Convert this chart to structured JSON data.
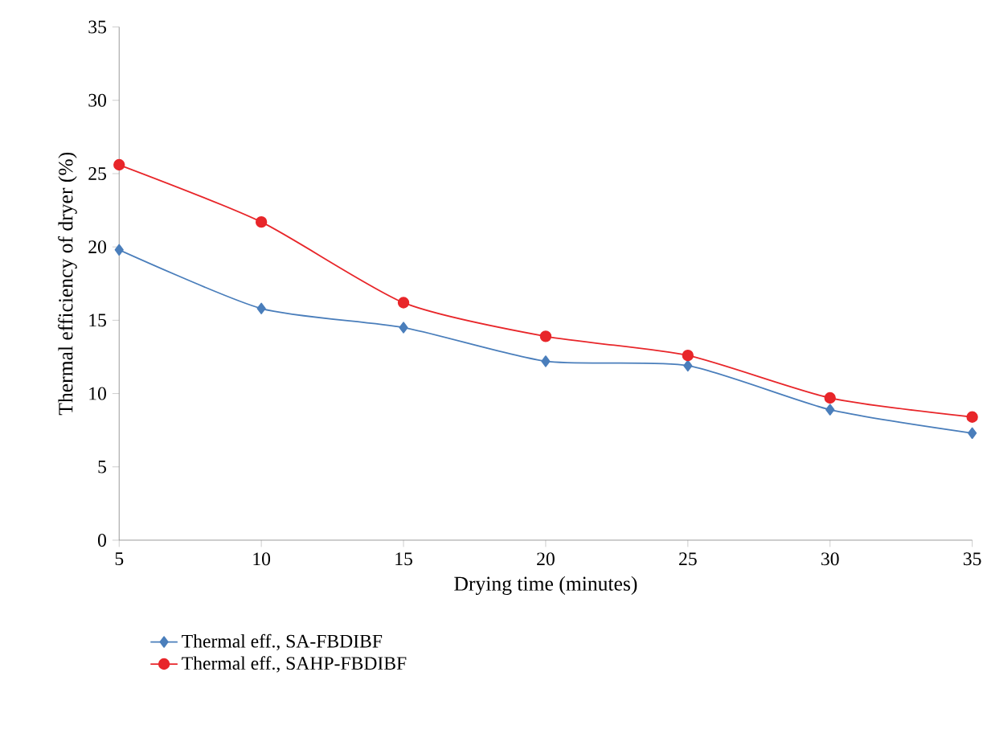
{
  "chart_data": {
    "type": "line",
    "xlabel": "Drying time (minutes)",
    "ylabel": "Thermal efficiency of dryer (%)",
    "x": [
      5,
      10,
      15,
      20,
      25,
      30,
      35
    ],
    "series": [
      {
        "name": "Thermal eff., SA-FBDIBF",
        "color": "#4a7ebb",
        "marker": "diamond",
        "values": [
          19.8,
          15.8,
          14.5,
          12.2,
          11.9,
          8.9,
          7.3
        ]
      },
      {
        "name": "Thermal eff., SAHP-FBDIBF",
        "color": "#e8262a",
        "marker": "circle",
        "values": [
          25.6,
          21.7,
          16.2,
          13.9,
          12.6,
          9.7,
          8.4
        ]
      }
    ],
    "xlim": [
      5,
      35
    ],
    "xticks": [
      5,
      10,
      15,
      20,
      25,
      30,
      35
    ],
    "ylim": [
      0,
      35
    ],
    "yticks": [
      0,
      5,
      10,
      15,
      20,
      25,
      30,
      35
    ],
    "grid": false,
    "legend": "bottom left",
    "line_style": "solid"
  }
}
